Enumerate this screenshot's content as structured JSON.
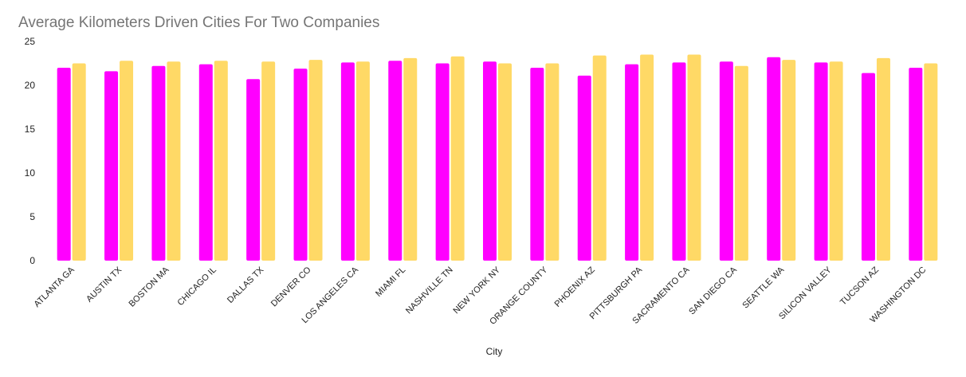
{
  "chart_data": {
    "type": "bar",
    "title": "Average Kilometers Driven Cities For Two Companies",
    "xlabel": "City",
    "ylabel": "",
    "ylim": [
      0,
      25
    ],
    "yticks": [
      0,
      5,
      10,
      15,
      20,
      25
    ],
    "grid": false,
    "categories": [
      "ATLANTA GA",
      "AUSTIN TX",
      "BOSTON MA",
      "CHICAGO IL",
      "DALLAS TX",
      "DENVER CO",
      "LOS ANGELES CA",
      "MIAMI FL",
      "NASHVILLE TN",
      "NEW YORK NY",
      "ORANGE COUNTY",
      "PHOENIX AZ",
      "PITTSBURGH PA",
      "SACRAMENTO CA",
      "SAN DIEGO CA",
      "SEATTLE WA",
      "SILICON VALLEY",
      "TUCSON AZ",
      "WASHINGTON DC"
    ],
    "series": [
      {
        "color": "#ff00ff",
        "values": [
          22.0,
          21.6,
          22.2,
          22.4,
          20.7,
          21.9,
          22.6,
          22.8,
          22.5,
          22.7,
          22.0,
          21.1,
          22.4,
          22.6,
          22.7,
          23.2,
          22.6,
          21.4,
          22.0
        ]
      },
      {
        "color": "#ffd966",
        "values": [
          22.5,
          22.8,
          22.7,
          22.8,
          22.7,
          22.9,
          22.7,
          23.1,
          23.3,
          22.5,
          22.5,
          23.4,
          23.5,
          23.5,
          22.2,
          22.9,
          22.7,
          23.1,
          22.5
        ]
      }
    ]
  }
}
